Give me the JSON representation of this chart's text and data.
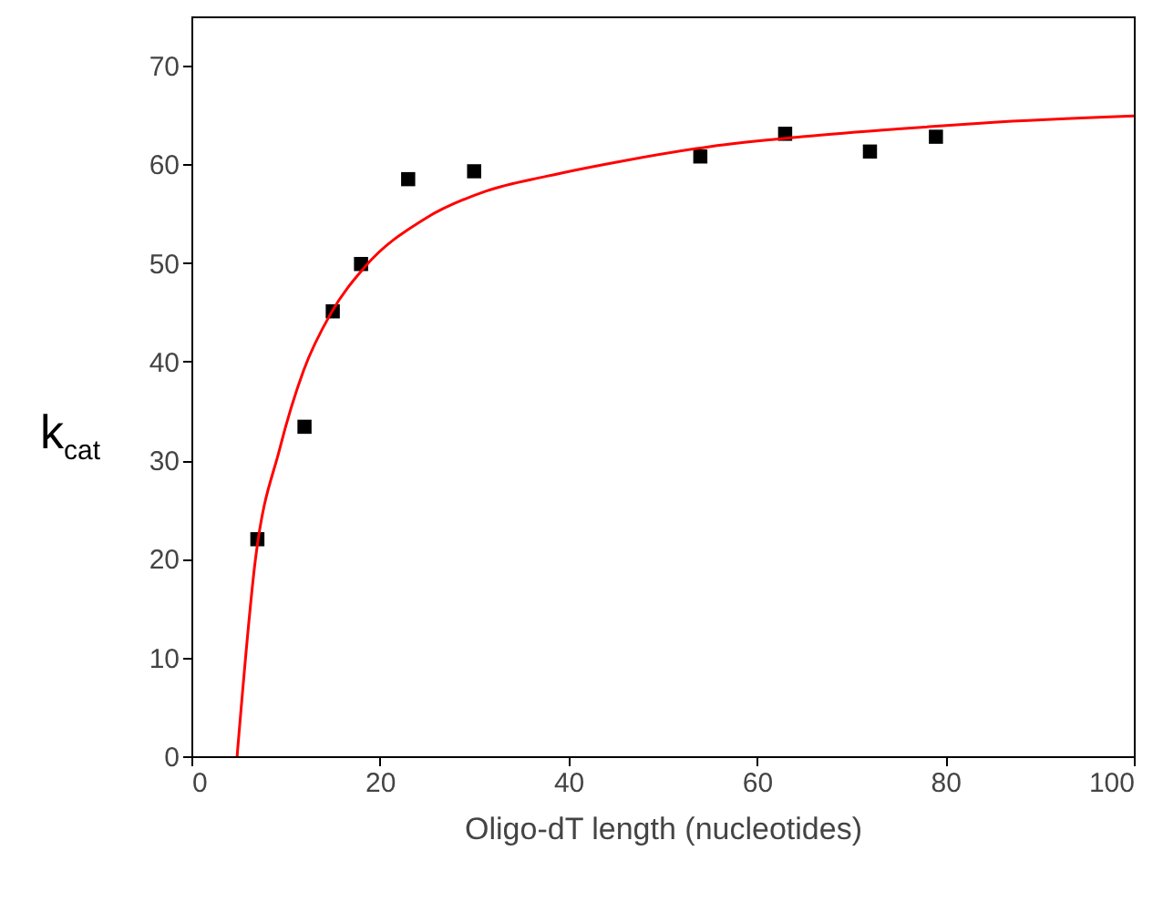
{
  "chart_data": {
    "type": "scatter",
    "xlabel": "Oligo-dT length (nucleotides)",
    "ylabel": "k$_{cat}$",
    "xlim": [
      0,
      100
    ],
    "xticks": [
      0,
      20,
      40,
      60,
      80,
      100
    ],
    "ylim": [
      0,
      75
    ],
    "yticks": [
      0,
      10,
      20,
      30,
      40,
      50,
      60,
      70
    ],
    "series": [
      {
        "marker": "square",
        "color": "#000000",
        "x": [
          7,
          12,
          15,
          18,
          23,
          30,
          54,
          63,
          72,
          79
        ],
        "values": [
          22.0,
          33.4,
          45.1,
          49.9,
          58.5,
          59.3,
          60.8,
          63.1,
          61.3,
          62.8
        ]
      },
      {
        "type": "line",
        "color": "#ff0000",
        "x": [
          4.85,
          6.8,
          9.35,
          11.9,
          14.8,
          18.4,
          24.8,
          31.3,
          37.7,
          45.5,
          55,
          64.8,
          75,
          84.1,
          100
        ],
        "values": [
          0,
          20,
          31.1,
          39.1,
          44.9,
          49.6,
          54.5,
          57.3,
          58.8,
          60.3,
          61.8,
          62.8,
          63.6,
          64.2,
          64.9
        ]
      }
    ]
  }
}
